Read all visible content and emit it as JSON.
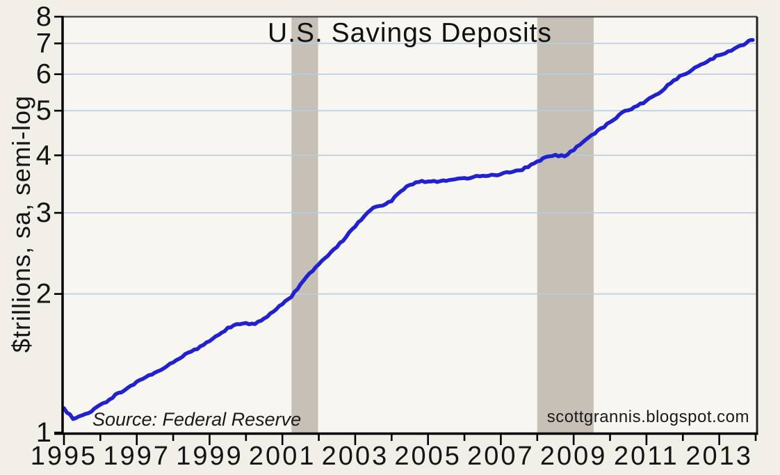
{
  "chart_data": {
    "type": "line",
    "title": "U.S. Savings Deposits",
    "ylabel": "$trillions, sa, semi-log",
    "xlabel": "",
    "source_note": "Source: Federal Reserve",
    "watermark": "scottgrannis.blogspot.com",
    "y_scale": "log",
    "ylim": [
      1,
      8
    ],
    "y_ticks": [
      1,
      2,
      3,
      4,
      5,
      6,
      7,
      8
    ],
    "xlim": [
      1995,
      2014
    ],
    "x_minor_tick_step": 1,
    "x_labeled_years": [
      1995,
      1997,
      1999,
      2001,
      2003,
      2005,
      2007,
      2009,
      2011,
      2013
    ],
    "grid": "horizontal",
    "legend": "none",
    "recessions": [
      {
        "start": 2001.25,
        "end": 2001.98
      },
      {
        "start": 2008.0,
        "end": 2009.55
      }
    ],
    "series": [
      {
        "name": "U.S. Savings Deposits",
        "units": "$trillions, seasonally adjusted",
        "x": [
          1995.0,
          1995.25,
          1995.5,
          1995.75,
          1996.0,
          1996.25,
          1996.5,
          1996.75,
          1997.0,
          1997.25,
          1997.5,
          1997.75,
          1998.0,
          1998.25,
          1998.5,
          1998.75,
          1999.0,
          1999.25,
          1999.5,
          1999.75,
          2000.0,
          2000.25,
          2000.5,
          2000.75,
          2001.0,
          2001.25,
          2001.5,
          2001.75,
          2002.0,
          2002.25,
          2002.5,
          2002.75,
          2003.0,
          2003.25,
          2003.5,
          2003.75,
          2004.0,
          2004.25,
          2004.5,
          2004.75,
          2005.0,
          2005.25,
          2005.5,
          2005.75,
          2006.0,
          2006.25,
          2006.5,
          2006.75,
          2007.0,
          2007.25,
          2007.5,
          2007.75,
          2008.0,
          2008.25,
          2008.5,
          2008.75,
          2009.0,
          2009.25,
          2009.5,
          2009.75,
          2010.0,
          2010.25,
          2010.5,
          2010.75,
          2011.0,
          2011.25,
          2011.5,
          2011.75,
          2012.0,
          2012.25,
          2012.5,
          2012.75,
          2013.0,
          2013.25,
          2013.5,
          2013.75,
          2013.92
        ],
        "y": [
          1.13,
          1.07,
          1.09,
          1.11,
          1.15,
          1.18,
          1.22,
          1.25,
          1.29,
          1.32,
          1.35,
          1.38,
          1.42,
          1.46,
          1.5,
          1.54,
          1.58,
          1.63,
          1.69,
          1.72,
          1.73,
          1.72,
          1.77,
          1.83,
          1.9,
          1.97,
          2.1,
          2.22,
          2.32,
          2.42,
          2.53,
          2.66,
          2.8,
          2.95,
          3.08,
          3.11,
          3.18,
          3.34,
          3.45,
          3.5,
          3.51,
          3.5,
          3.52,
          3.55,
          3.57,
          3.59,
          3.61,
          3.63,
          3.64,
          3.67,
          3.71,
          3.77,
          3.88,
          3.97,
          4.01,
          3.98,
          4.1,
          4.27,
          4.43,
          4.58,
          4.72,
          4.9,
          5.01,
          5.12,
          5.26,
          5.41,
          5.58,
          5.82,
          5.98,
          6.13,
          6.3,
          6.46,
          6.6,
          6.73,
          6.88,
          7.02,
          7.12
        ]
      }
    ],
    "colors": {
      "line": "#2121cd",
      "grid": "#b7cedd",
      "recession_band": "#c6c0b6",
      "plot_background": "#f8f6f1",
      "page_background": "#f1efe8",
      "frame": "#000000",
      "frame_top_right": "#4a4a4a",
      "text": "#151515"
    }
  }
}
